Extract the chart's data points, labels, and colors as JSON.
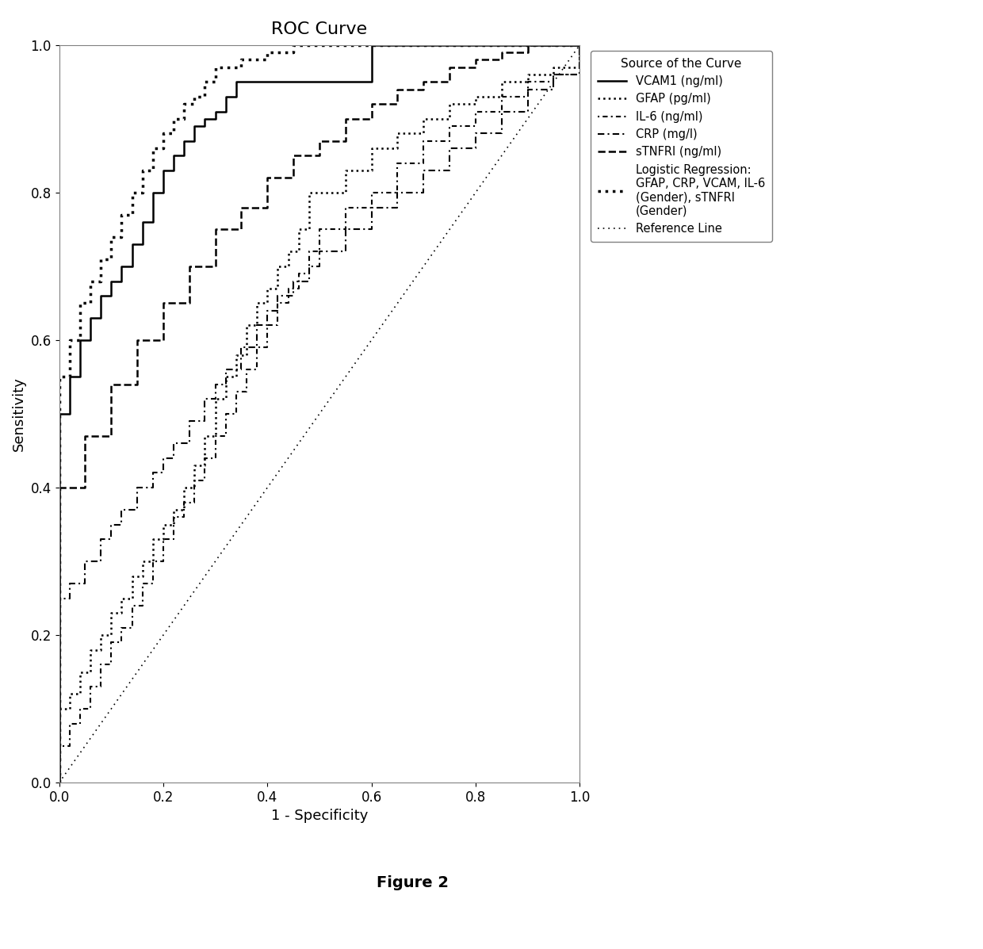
{
  "title": "ROC Curve",
  "xlabel": "1 - Specificity",
  "ylabel": "Sensitivity",
  "figure_caption": "Figure 2",
  "xlim": [
    0.0,
    1.0
  ],
  "ylim": [
    0.0,
    1.0
  ],
  "xticks": [
    0.0,
    0.2,
    0.4,
    0.6,
    0.8,
    1.0
  ],
  "yticks": [
    0.0,
    0.2,
    0.4,
    0.6,
    0.8,
    1.0
  ],
  "legend_title": "Source of the Curve",
  "curves": {
    "VCAM1": {
      "label": "VCAM1 (ng/ml)",
      "linestyle_key": "solid",
      "linewidth": 1.8,
      "color": "#000000",
      "x": [
        0.0,
        0.0,
        0.02,
        0.02,
        0.04,
        0.04,
        0.06,
        0.06,
        0.08,
        0.08,
        0.1,
        0.1,
        0.12,
        0.12,
        0.14,
        0.14,
        0.16,
        0.16,
        0.18,
        0.18,
        0.2,
        0.2,
        0.22,
        0.22,
        0.24,
        0.24,
        0.26,
        0.26,
        0.28,
        0.28,
        0.3,
        0.3,
        0.32,
        0.32,
        0.34,
        0.34,
        0.36,
        0.6,
        0.6,
        1.0
      ],
      "y": [
        0.0,
        0.5,
        0.5,
        0.55,
        0.55,
        0.6,
        0.6,
        0.63,
        0.63,
        0.66,
        0.66,
        0.68,
        0.68,
        0.7,
        0.7,
        0.73,
        0.73,
        0.76,
        0.76,
        0.8,
        0.8,
        0.83,
        0.83,
        0.85,
        0.85,
        0.87,
        0.87,
        0.89,
        0.89,
        0.9,
        0.9,
        0.91,
        0.91,
        0.93,
        0.93,
        0.95,
        0.95,
        0.95,
        1.0,
        1.0
      ]
    },
    "GFAP": {
      "label": "GFAP (pg/ml)",
      "linestyle_key": "dotted_fine",
      "linewidth": 1.8,
      "color": "#000000",
      "x": [
        0.0,
        0.0,
        0.02,
        0.02,
        0.04,
        0.04,
        0.06,
        0.06,
        0.08,
        0.08,
        0.1,
        0.1,
        0.12,
        0.12,
        0.14,
        0.14,
        0.16,
        0.16,
        0.18,
        0.18,
        0.2,
        0.2,
        0.22,
        0.22,
        0.24,
        0.24,
        0.26,
        0.26,
        0.28,
        0.28,
        0.3,
        0.3,
        0.32,
        0.32,
        0.34,
        0.34,
        0.36,
        0.36,
        0.38,
        0.38,
        0.4,
        0.4,
        0.42,
        0.42,
        0.44,
        0.44,
        0.46,
        0.46,
        0.48,
        0.48,
        0.5,
        0.55,
        0.6,
        0.65,
        0.7,
        0.75,
        0.8,
        0.85,
        0.9,
        0.95,
        1.0
      ],
      "y": [
        0.0,
        0.1,
        0.1,
        0.12,
        0.12,
        0.15,
        0.15,
        0.18,
        0.18,
        0.2,
        0.2,
        0.23,
        0.23,
        0.25,
        0.25,
        0.28,
        0.28,
        0.3,
        0.3,
        0.33,
        0.33,
        0.35,
        0.35,
        0.37,
        0.37,
        0.4,
        0.4,
        0.43,
        0.43,
        0.47,
        0.47,
        0.52,
        0.52,
        0.55,
        0.55,
        0.58,
        0.58,
        0.62,
        0.62,
        0.65,
        0.65,
        0.67,
        0.67,
        0.7,
        0.7,
        0.72,
        0.72,
        0.75,
        0.75,
        0.8,
        0.8,
        0.83,
        0.86,
        0.88,
        0.9,
        0.92,
        0.93,
        0.95,
        0.96,
        0.97,
        1.0
      ]
    },
    "IL6": {
      "label": "IL-6 (ng/ml)",
      "linestyle_key": "dashdot_fine",
      "linewidth": 1.5,
      "color": "#000000",
      "x": [
        0.0,
        0.0,
        0.02,
        0.02,
        0.04,
        0.04,
        0.06,
        0.06,
        0.08,
        0.08,
        0.1,
        0.1,
        0.12,
        0.12,
        0.14,
        0.14,
        0.16,
        0.16,
        0.18,
        0.18,
        0.2,
        0.2,
        0.22,
        0.22,
        0.24,
        0.24,
        0.26,
        0.26,
        0.28,
        0.28,
        0.3,
        0.3,
        0.32,
        0.32,
        0.34,
        0.34,
        0.36,
        0.36,
        0.38,
        0.38,
        0.4,
        0.4,
        0.42,
        0.42,
        0.44,
        0.44,
        0.46,
        0.46,
        0.48,
        0.48,
        0.5,
        0.5,
        0.55,
        0.6,
        0.65,
        0.7,
        0.75,
        0.8,
        0.85,
        0.9,
        0.95,
        1.0
      ],
      "y": [
        0.0,
        0.05,
        0.05,
        0.08,
        0.08,
        0.1,
        0.1,
        0.13,
        0.13,
        0.16,
        0.16,
        0.19,
        0.19,
        0.21,
        0.21,
        0.24,
        0.24,
        0.27,
        0.27,
        0.3,
        0.3,
        0.33,
        0.33,
        0.36,
        0.36,
        0.38,
        0.38,
        0.41,
        0.41,
        0.44,
        0.44,
        0.47,
        0.47,
        0.5,
        0.5,
        0.53,
        0.53,
        0.56,
        0.56,
        0.59,
        0.59,
        0.62,
        0.62,
        0.65,
        0.65,
        0.67,
        0.67,
        0.69,
        0.69,
        0.72,
        0.72,
        0.75,
        0.78,
        0.8,
        0.84,
        0.87,
        0.89,
        0.91,
        0.93,
        0.95,
        0.96,
        1.0
      ]
    },
    "CRP": {
      "label": "CRP (mg/l)",
      "linestyle_key": "dashdot_long",
      "linewidth": 1.5,
      "color": "#000000",
      "x": [
        0.0,
        0.0,
        0.02,
        0.02,
        0.05,
        0.05,
        0.08,
        0.08,
        0.1,
        0.1,
        0.12,
        0.12,
        0.15,
        0.15,
        0.18,
        0.18,
        0.2,
        0.2,
        0.22,
        0.22,
        0.25,
        0.25,
        0.28,
        0.28,
        0.3,
        0.3,
        0.32,
        0.32,
        0.35,
        0.35,
        0.38,
        0.38,
        0.4,
        0.4,
        0.42,
        0.42,
        0.45,
        0.45,
        0.48,
        0.48,
        0.5,
        0.5,
        0.55,
        0.6,
        0.65,
        0.7,
        0.75,
        0.8,
        0.85,
        0.9,
        0.95,
        1.0
      ],
      "y": [
        0.0,
        0.25,
        0.25,
        0.27,
        0.27,
        0.3,
        0.3,
        0.33,
        0.33,
        0.35,
        0.35,
        0.37,
        0.37,
        0.4,
        0.4,
        0.42,
        0.42,
        0.44,
        0.44,
        0.46,
        0.46,
        0.49,
        0.49,
        0.52,
        0.52,
        0.54,
        0.54,
        0.56,
        0.56,
        0.59,
        0.59,
        0.62,
        0.62,
        0.64,
        0.64,
        0.66,
        0.66,
        0.68,
        0.68,
        0.7,
        0.7,
        0.72,
        0.75,
        0.78,
        0.8,
        0.83,
        0.86,
        0.88,
        0.91,
        0.94,
        0.96,
        1.0
      ]
    },
    "sTNFRI": {
      "label": "sTNFRI (ng/ml)",
      "linestyle_key": "dashed",
      "linewidth": 1.8,
      "color": "#000000",
      "x": [
        0.0,
        0.0,
        0.05,
        0.05,
        0.1,
        0.1,
        0.15,
        0.15,
        0.2,
        0.2,
        0.25,
        0.25,
        0.3,
        0.3,
        0.35,
        0.35,
        0.4,
        0.4,
        0.45,
        0.45,
        0.5,
        0.5,
        0.55,
        0.55,
        0.6,
        0.6,
        0.65,
        0.65,
        0.7,
        0.7,
        0.75,
        0.75,
        0.8,
        0.8,
        0.85,
        0.85,
        0.9,
        0.9,
        0.95,
        1.0
      ],
      "y": [
        0.0,
        0.4,
        0.4,
        0.47,
        0.47,
        0.54,
        0.54,
        0.6,
        0.6,
        0.65,
        0.65,
        0.7,
        0.7,
        0.75,
        0.75,
        0.78,
        0.78,
        0.82,
        0.82,
        0.85,
        0.85,
        0.87,
        0.87,
        0.9,
        0.9,
        0.92,
        0.92,
        0.94,
        0.94,
        0.95,
        0.95,
        0.97,
        0.97,
        0.98,
        0.98,
        0.99,
        0.99,
        1.0,
        1.0,
        1.0
      ]
    },
    "LogReg": {
      "label": "Logistic Regression:\nGFAP, CRP, VCAM, IL-6\n(Gender), sTNFRI\n(Gender)",
      "linestyle_key": "dotted_heavy",
      "linewidth": 2.5,
      "color": "#000000",
      "x": [
        0.0,
        0.0,
        0.02,
        0.02,
        0.04,
        0.04,
        0.06,
        0.06,
        0.08,
        0.08,
        0.1,
        0.1,
        0.12,
        0.12,
        0.14,
        0.14,
        0.16,
        0.16,
        0.18,
        0.18,
        0.2,
        0.2,
        0.22,
        0.22,
        0.24,
        0.24,
        0.26,
        0.26,
        0.28,
        0.28,
        0.3,
        0.3,
        0.35,
        0.35,
        0.4,
        0.4,
        0.45,
        0.45,
        0.5,
        0.5,
        0.6,
        0.6,
        0.7,
        0.7,
        0.8,
        0.8,
        0.9,
        0.9,
        1.0
      ],
      "y": [
        0.0,
        0.55,
        0.55,
        0.6,
        0.6,
        0.65,
        0.65,
        0.68,
        0.68,
        0.71,
        0.71,
        0.74,
        0.74,
        0.77,
        0.77,
        0.8,
        0.8,
        0.83,
        0.83,
        0.86,
        0.86,
        0.88,
        0.88,
        0.9,
        0.9,
        0.92,
        0.92,
        0.93,
        0.93,
        0.95,
        0.95,
        0.97,
        0.97,
        0.98,
        0.98,
        0.99,
        0.99,
        1.0,
        1.0,
        1.0,
        1.0,
        1.0,
        1.0,
        1.0,
        1.0,
        1.0,
        1.0,
        1.0,
        1.0
      ]
    },
    "Reference": {
      "label": "Reference Line",
      "linestyle_key": "dotted_ref",
      "linewidth": 1.2,
      "color": "#000000",
      "x": [
        0.0,
        1.0
      ],
      "y": [
        0.0,
        1.0
      ]
    }
  },
  "background_color": "#ffffff",
  "title_fontsize": 16,
  "axis_fontsize": 13,
  "tick_fontsize": 12,
  "legend_fontsize": 10.5,
  "caption_fontsize": 14
}
